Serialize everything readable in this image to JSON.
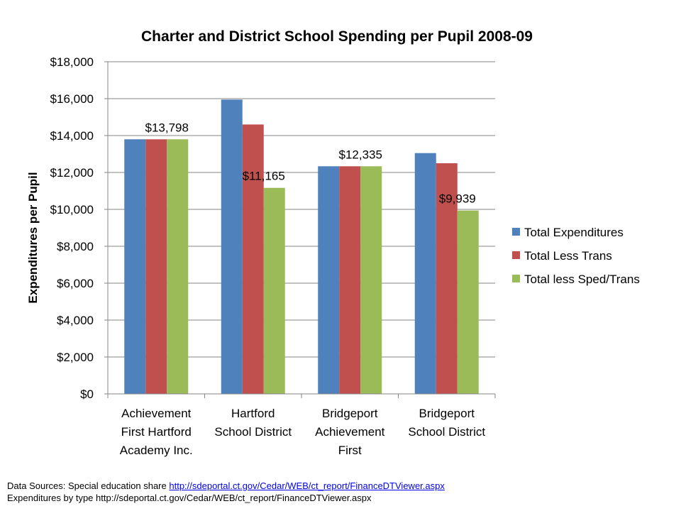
{
  "chart_data": {
    "type": "bar",
    "title": "Charter and District School Spending per Pupil 2008-09",
    "xlabel": "",
    "ylabel": "Expenditures per Pupil",
    "ylim": [
      0,
      18000
    ],
    "y_ticks": [
      "$0",
      "$2,000",
      "$4,000",
      "$6,000",
      "$8,000",
      "$10,000",
      "$12,000",
      "$14,000",
      "$16,000",
      "$18,000"
    ],
    "categories": [
      [
        "Achievement",
        "First Hartford",
        "Academy Inc."
      ],
      [
        "Hartford",
        "School District"
      ],
      [
        "Bridgeport",
        "Achievement",
        "First"
      ],
      [
        "Bridgeport",
        "School District"
      ]
    ],
    "series": [
      {
        "name": "Total Expenditures",
        "color": "#4f81bd",
        "values": [
          13798,
          15950,
          12335,
          13050
        ]
      },
      {
        "name": "Total Less Trans",
        "color": "#c0504d",
        "values": [
          13798,
          14600,
          12335,
          12500
        ]
      },
      {
        "name": "Total less Sped/Trans",
        "color": "#9bbb59",
        "values": [
          13798,
          11165,
          12335,
          9939
        ]
      }
    ],
    "data_labels": [
      {
        "text": "$13,798",
        "category": 0,
        "series": 2
      },
      {
        "text": "$11,165",
        "category": 1,
        "series": 2
      },
      {
        "text": "$12,335",
        "category": 2,
        "series": 2
      },
      {
        "text": "$9,939",
        "category": 3,
        "series": 2
      }
    ],
    "grid": true,
    "legend_position": "right"
  },
  "sources": {
    "line1_prefix": "Data Sources: Special education share ",
    "line1_link": "http://sdeportal.ct.gov/Cedar/WEB/ct_report/FinanceDTViewer.aspx",
    "line2": "Expenditures by type http://sdeportal.ct.gov/Cedar/WEB/ct_report/FinanceDTViewer.aspx"
  }
}
